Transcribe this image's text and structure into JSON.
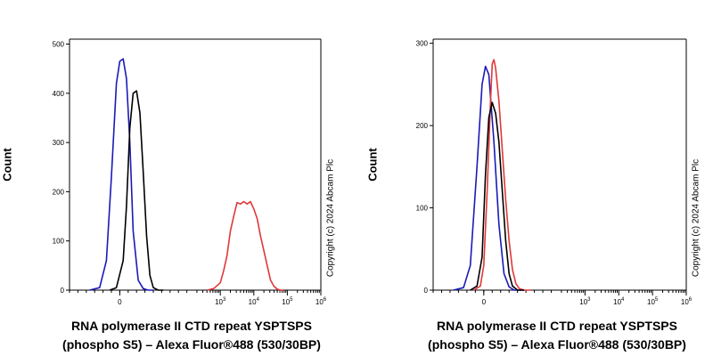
{
  "chart_data": [
    {
      "type": "line",
      "panel": "left",
      "title": "",
      "xlabel_line1": "RNA polymerase II CTD repeat YSPTSPS",
      "xlabel_line2": "(phospho S5) – Alexa Fluor®488 (530/30BP)",
      "ylabel": "Count",
      "copyright": "Copyright (c) 2024 Abcam Plc",
      "ylim": [
        0,
        510
      ],
      "yticks": [
        0,
        100,
        200,
        300,
        400,
        500
      ],
      "xlim": [
        -1.5,
        6
      ],
      "xticks": [
        {
          "value": 0,
          "base": "0",
          "exp": ""
        },
        {
          "value": 3,
          "base": "10",
          "exp": "3"
        },
        {
          "value": 4,
          "base": "10",
          "exp": "4"
        },
        {
          "value": 5,
          "base": "10",
          "exp": "5"
        },
        {
          "value": 6,
          "base": "10",
          "exp": "6"
        }
      ],
      "series": [
        {
          "name": "blue",
          "color": "#1a1ab8",
          "x": [
            -0.9,
            -0.6,
            -0.4,
            -0.25,
            -0.1,
            0.0,
            0.1,
            0.2,
            0.3,
            0.4,
            0.55,
            0.7,
            0.85,
            1.0
          ],
          "y": [
            0,
            5,
            60,
            230,
            420,
            465,
            470,
            430,
            300,
            120,
            20,
            3,
            0,
            0
          ]
        },
        {
          "name": "black",
          "color": "#000000",
          "x": [
            -0.3,
            -0.1,
            0.1,
            0.2,
            0.3,
            0.4,
            0.5,
            0.6,
            0.7,
            0.8,
            0.9,
            1.0,
            1.15,
            1.3
          ],
          "y": [
            0,
            5,
            60,
            170,
            330,
            400,
            405,
            360,
            240,
            110,
            30,
            5,
            0,
            0
          ]
        },
        {
          "name": "red",
          "color": "#e03838",
          "x": [
            2.6,
            2.8,
            3.0,
            3.1,
            3.2,
            3.3,
            3.4,
            3.5,
            3.6,
            3.7,
            3.8,
            3.9,
            4.0,
            4.1,
            4.2,
            4.3,
            4.4,
            4.5,
            4.6,
            4.7,
            4.8,
            4.9
          ],
          "y": [
            0,
            3,
            15,
            40,
            70,
            120,
            150,
            178,
            175,
            180,
            175,
            180,
            165,
            145,
            110,
            80,
            50,
            20,
            8,
            2,
            0,
            0
          ]
        }
      ]
    },
    {
      "type": "line",
      "panel": "right",
      "title": "",
      "xlabel_line1": "RNA polymerase II CTD repeat YSPTSPS",
      "xlabel_line2": "(phospho S5) – Alexa Fluor®488 (530/30BP)",
      "ylabel": "Count",
      "copyright": "Copyright (c) 2024 Abcam Plc",
      "ylim": [
        0,
        305
      ],
      "yticks": [
        0,
        100,
        200,
        300
      ],
      "xlim": [
        -1.5,
        6
      ],
      "xticks": [
        {
          "value": 0,
          "base": "0",
          "exp": ""
        },
        {
          "value": 3,
          "base": "10",
          "exp": "3"
        },
        {
          "value": 4,
          "base": "10",
          "exp": "4"
        },
        {
          "value": 5,
          "base": "10",
          "exp": "5"
        },
        {
          "value": 6,
          "base": "10",
          "exp": "6"
        }
      ],
      "series": [
        {
          "name": "blue",
          "color": "#1a1ab8",
          "x": [
            -0.9,
            -0.6,
            -0.4,
            -0.2,
            -0.05,
            0.05,
            0.15,
            0.3,
            0.45,
            0.6,
            0.75,
            0.9,
            1.05,
            1.2
          ],
          "y": [
            0,
            3,
            30,
            150,
            250,
            272,
            262,
            180,
            80,
            20,
            4,
            0,
            0,
            0
          ]
        },
        {
          "name": "red",
          "color": "#e03838",
          "x": [
            -0.3,
            -0.1,
            0.0,
            0.1,
            0.2,
            0.25,
            0.3,
            0.35,
            0.45,
            0.55,
            0.65,
            0.75,
            0.85,
            0.95,
            1.05,
            1.2,
            1.4
          ],
          "y": [
            0,
            5,
            30,
            120,
            230,
            275,
            280,
            270,
            230,
            170,
            110,
            60,
            25,
            8,
            2,
            0,
            0
          ]
        },
        {
          "name": "black",
          "color": "#000000",
          "x": [
            -0.4,
            -0.2,
            -0.05,
            0.05,
            0.15,
            0.25,
            0.35,
            0.45,
            0.55,
            0.65,
            0.75,
            0.85,
            1.0,
            1.2
          ],
          "y": [
            0,
            5,
            40,
            140,
            210,
            228,
            215,
            180,
            120,
            60,
            20,
            5,
            0,
            0
          ]
        }
      ]
    }
  ]
}
